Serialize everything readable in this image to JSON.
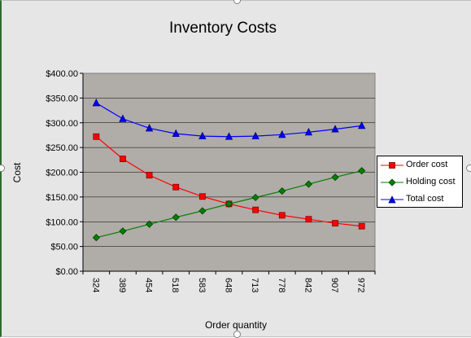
{
  "chart_data": {
    "type": "line",
    "title": "Inventory Costs",
    "xlabel": "Order quantity",
    "ylabel": "Cost",
    "categories": [
      "324",
      "389",
      "454",
      "518",
      "583",
      "648",
      "713",
      "778",
      "842",
      "907",
      "972"
    ],
    "ylim": [
      0,
      400
    ],
    "yticks": [
      "$0.00",
      "$50.00",
      "$100.00",
      "$150.00",
      "$200.00",
      "$250.00",
      "$300.00",
      "$350.00",
      "$400.00"
    ],
    "grid": true,
    "legend_position": "right",
    "plot_background": "#b0aca8",
    "series": [
      {
        "name": "Order cost",
        "color": "#ff0000",
        "marker": "square",
        "values": [
          272,
          227,
          194,
          170,
          151,
          136,
          124,
          113,
          105,
          97,
          91
        ]
      },
      {
        "name": "Holding cost",
        "color": "#008000",
        "marker": "diamond",
        "values": [
          68,
          81,
          95,
          109,
          122,
          136,
          149,
          162,
          176,
          190,
          203
        ]
      },
      {
        "name": "Total cost",
        "color": "#0000ff",
        "marker": "triangle",
        "values": [
          340,
          308,
          289,
          278,
          273,
          272,
          273,
          276,
          281,
          287,
          294
        ]
      }
    ]
  }
}
